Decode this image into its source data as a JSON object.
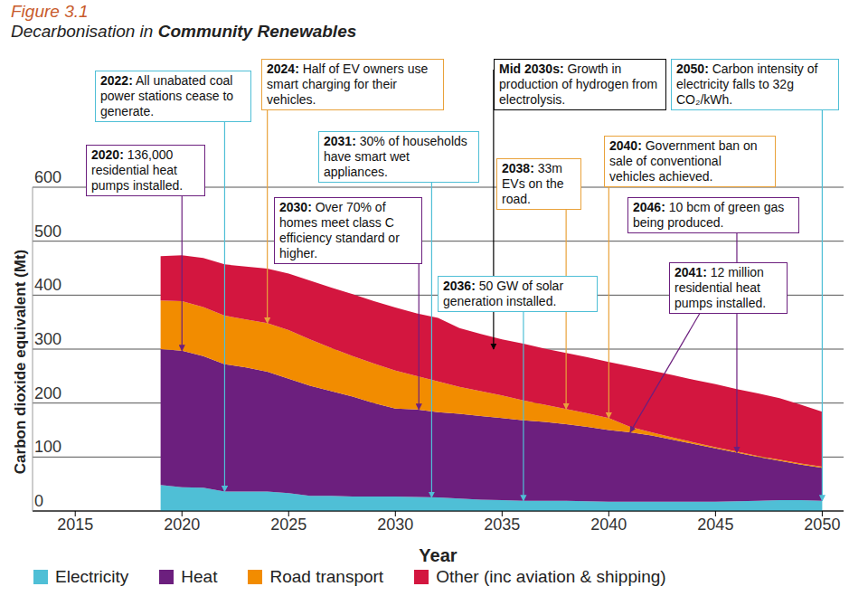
{
  "chart_data": {
    "type": "area",
    "title": "Figure 3.1",
    "subtitle": "Decarbonisation in Community Renewables",
    "x_label": "Year",
    "y_label": "Carbon dioxide equivalent (Mt)",
    "x": [
      2019,
      2020,
      2021,
      2022,
      2023,
      2024,
      2025,
      2026,
      2027,
      2028,
      2029,
      2030,
      2031,
      2032,
      2033,
      2034,
      2035,
      2036,
      2037,
      2038,
      2039,
      2040,
      2041,
      2042,
      2043,
      2044,
      2045,
      2046,
      2047,
      2048,
      2049,
      2050
    ],
    "series": [
      {
        "name": "Electricity",
        "color": "#4fbfd6",
        "values": [
          48,
          44,
          43,
          36,
          36,
          36,
          33,
          28,
          28,
          27,
          27,
          27,
          26,
          25,
          23,
          21,
          20,
          19,
          19,
          19,
          18,
          17,
          17,
          17,
          17,
          17,
          17,
          18,
          19,
          20,
          20,
          19
        ]
      },
      {
        "name": "Heat",
        "color": "#6c1f7e",
        "values": [
          252,
          253,
          244,
          236,
          230,
          222,
          212,
          204,
          194,
          185,
          173,
          163,
          162,
          158,
          157,
          155,
          152,
          149,
          146,
          142,
          138,
          133,
          129,
          123,
          115,
          107,
          99,
          90,
          81,
          73,
          66,
          61
        ]
      },
      {
        "name": "Road transport",
        "color": "#f28c00",
        "values": [
          90,
          92,
          91,
          90,
          89,
          90,
          90,
          86,
          80,
          75,
          73,
          70,
          62,
          57,
          50,
          46,
          42,
          37,
          32,
          28,
          25,
          22,
          10,
          6,
          4,
          3,
          2,
          2,
          2,
          2,
          2,
          2
        ]
      },
      {
        "name": "Other (inc aviation & shipping)",
        "color": "#d3163f",
        "values": [
          82,
          85,
          91,
          95,
          98,
          101,
          105,
          109,
          112,
          115,
          116,
          117,
          116,
          118,
          109,
          106,
          104,
          105,
          104,
          104,
          104,
          104,
          112,
          114,
          116,
          116,
          117,
          116,
          116,
          114,
          109,
          102
        ]
      }
    ],
    "xlim": [
      2013,
      2051
    ],
    "xticks": [
      2015,
      2020,
      2025,
      2030,
      2035,
      2040,
      2045,
      2050
    ],
    "ylim": [
      0,
      600
    ],
    "yticks": [
      0,
      100,
      200,
      300,
      400,
      500,
      600
    ],
    "stacked": true,
    "grid": true,
    "legend": "bottom",
    "annotations": [
      {
        "date": "2020:",
        "text": "136,000 residential heat pumps installed.",
        "x": 2020,
        "y": 297,
        "color": "#6c1f7e"
      },
      {
        "date": "2022:",
        "text": "All unabated coal power stations cease to generate.",
        "x": 2022,
        "y": 36,
        "color": "#4fbfd6"
      },
      {
        "date": "2024:",
        "text": "Half of EV owners use smart charging for their vehicles.",
        "x": 2024,
        "y": 348,
        "color": "#e9a23b"
      },
      {
        "date": "2030:",
        "text": "Over 70% of homes meet class C efficiency standard or higher.",
        "x": 2031.1,
        "y": 188,
        "color": "#6c1f7e"
      },
      {
        "date": "2031:",
        "text": "30% of households have smart wet appliances.",
        "x": 2031.7,
        "y": 25,
        "color": "#4fbfd6"
      },
      {
        "date": "Mid 2030s:",
        "text": "Growth in production of hydrogen from electrolysis.",
        "x": 2034.6,
        "y": 300,
        "color": "#000000"
      },
      {
        "date": "2036:",
        "text": "50 GW of solar generation installed.",
        "x": 2036,
        "y": 19,
        "color": "#4fbfd6"
      },
      {
        "date": "2038:",
        "text": "33m EVs on the road.",
        "x": 2038,
        "y": 189,
        "color": "#e9a23b"
      },
      {
        "date": "2040:",
        "text": "Government ban on sale of conventional vehicles achieved.",
        "x": 2040,
        "y": 172,
        "color": "#e9a23b"
      },
      {
        "date": "2041:",
        "text": "12 million residential heat pumps installed.",
        "x": 2041,
        "y": 146,
        "color": "#6c1f7e"
      },
      {
        "date": "2046:",
        "text": "10 bcm of green gas being produced.",
        "x": 2046,
        "y": 108,
        "color": "#6c1f7e"
      },
      {
        "date": "2050:",
        "text": "Carbon intensity of electricity falls to 32g CO₂/kWh.",
        "x": 2050,
        "y": 19,
        "color": "#4fbfd6"
      }
    ]
  }
}
